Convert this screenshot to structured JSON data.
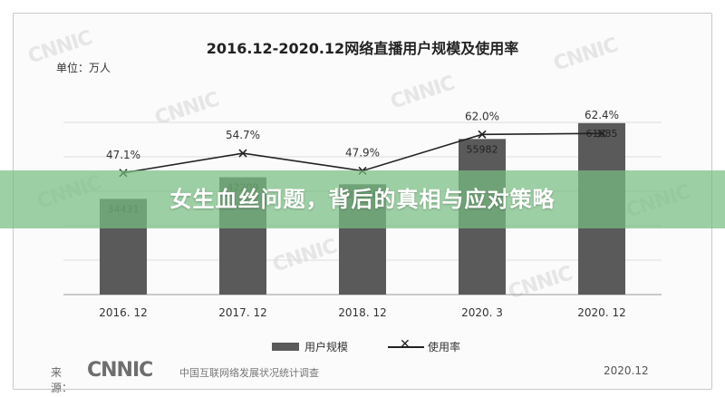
{
  "chart_data": {
    "type": "bar",
    "title": "2016.12-2020.12网络直播用户规模及使用率",
    "unit_label": "单位：万人",
    "categories": [
      "2016. 12",
      "2017. 12",
      "2018. 12",
      "2020. 3",
      "2020. 12"
    ],
    "series": [
      {
        "name": "用户规模",
        "type": "bar",
        "values": [
          34431,
          42209,
          39676,
          55982,
          61685
        ],
        "labels": [
          "34431",
          "42209",
          "39676",
          "55982",
          "61685"
        ]
      },
      {
        "name": "使用率",
        "type": "line",
        "values": [
          47.1,
          54.7,
          47.9,
          62.0,
          62.4
        ],
        "labels": [
          "47.1%",
          "54.7%",
          "47.9%",
          "62.0%",
          "62.4%"
        ]
      }
    ],
    "grid": true,
    "legend_position": "bottom",
    "colors": {
      "bar": "#5a5a5a",
      "line": "#222222",
      "grid": "#dcdcdc"
    }
  },
  "overlay": {
    "headline": "女生血丝问题，背后的真相与应对策略"
  },
  "footer": {
    "source_label": "来源：",
    "source_logo": "CNNIC",
    "source_org": "中国互联网络发展状况统计调查",
    "date": "2020.12"
  },
  "watermark": "CNNIC"
}
